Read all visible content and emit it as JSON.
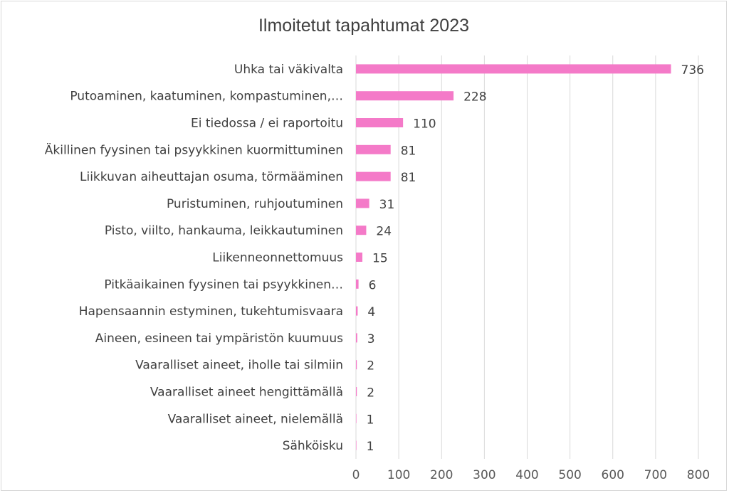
{
  "chart_data": {
    "type": "bar",
    "orientation": "horizontal",
    "title": "Ilmoitetut tapahtumat 2023",
    "categories": [
      "Uhka tai väkivalta",
      "Putoaminen, kaatuminen, kompastuminen,…",
      "Ei tiedossa / ei raportoitu",
      "Äkillinen fyysinen tai psyykkinen kuormittuminen",
      "Liikkuvan aiheuttajan osuma, törmääminen",
      "Puristuminen, ruhjoutuminen",
      "Pisto, viilto, hankauma, leikkautuminen",
      "Liikenneonnettomuus",
      "Pitkäaikainen fyysinen tai psyykkinen…",
      "Hapensaannin estyminen, tukehtumisvaara",
      "Aineen, esineen tai ympäristön kuumuus",
      "Vaaralliset aineet, iholle tai silmiin",
      "Vaaralliset aineet hengittämällä",
      "Vaaralliset aineet, nielemällä",
      "Sähköisku"
    ],
    "values": [
      736,
      228,
      110,
      81,
      81,
      31,
      24,
      15,
      6,
      4,
      3,
      2,
      2,
      1,
      1
    ],
    "xlim": [
      0,
      800
    ],
    "xticks": [
      0,
      100,
      200,
      300,
      400,
      500,
      600,
      700,
      800
    ],
    "grid": "vertical",
    "legend": "none",
    "bar_color": "#f47ac8"
  }
}
